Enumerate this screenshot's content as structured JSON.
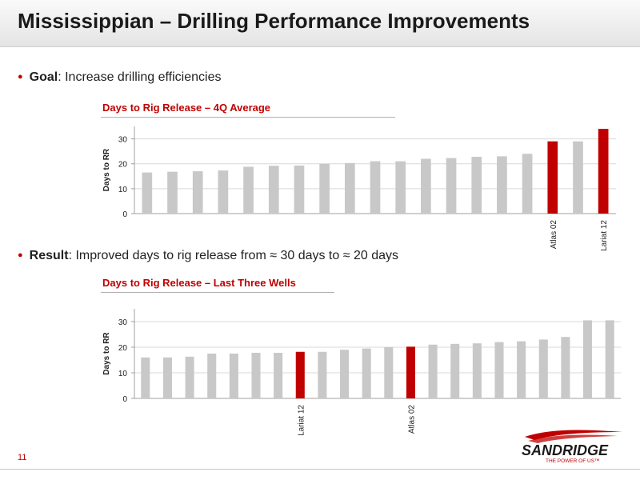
{
  "header": {
    "title": "Mississippian – Drilling Performance Improvements"
  },
  "bullets": [
    {
      "label": "Goal",
      "text": ": Increase drilling efficiencies"
    },
    {
      "label": "Result",
      "text": ": Improved days to rig release from ≈ 30 days to ≈ 20 days"
    }
  ],
  "page_number": "11",
  "logo": {
    "brand": "SANDRIDGE",
    "tagline": "THE POWER OF US™"
  },
  "colors": {
    "highlight": "#c00000",
    "bar": "#c8c8c8",
    "gridline": "#d9d9d9",
    "axis": "#a0a0a0"
  },
  "chart_data": [
    {
      "type": "bar",
      "title": "Days to Rig Release – 4Q Average",
      "ylabel": "Days to RR",
      "xlabel": "",
      "ylim": [
        0,
        35
      ],
      "yticks": [
        0,
        10,
        20,
        30
      ],
      "grid": true,
      "categories": [
        "",
        "",
        "",
        "",
        "",
        "",
        "",
        "",
        "",
        "",
        "",
        "",
        "",
        "",
        "",
        "",
        "Atlas 02",
        "",
        "Lariat 12"
      ],
      "values": [
        16.5,
        16.8,
        17.0,
        17.3,
        18.8,
        19.2,
        19.3,
        20.0,
        20.3,
        21.0,
        21.0,
        22.0,
        22.3,
        22.8,
        23.0,
        24.0,
        29.0,
        29.0,
        34.0
      ],
      "highlight": [
        16,
        18
      ]
    },
    {
      "type": "bar",
      "title": "Days to Rig Release – Last Three Wells",
      "ylabel": "Days to RR",
      "xlabel": "",
      "ylim": [
        0,
        35
      ],
      "yticks": [
        0,
        10,
        20,
        30
      ],
      "grid": true,
      "categories": [
        "",
        "",
        "",
        "",
        "",
        "",
        "",
        "Lariat 12",
        "",
        "",
        "",
        "",
        "Atlas 02",
        "",
        "",
        "",
        "",
        "",
        "",
        "",
        "",
        ""
      ],
      "values": [
        16.0,
        16.0,
        16.3,
        17.5,
        17.5,
        17.8,
        17.8,
        18.2,
        18.2,
        19.0,
        19.5,
        20.0,
        20.2,
        21.0,
        21.3,
        21.5,
        22.0,
        22.3,
        23.0,
        24.0,
        30.5,
        30.5
      ],
      "highlight": [
        7,
        12
      ]
    }
  ]
}
